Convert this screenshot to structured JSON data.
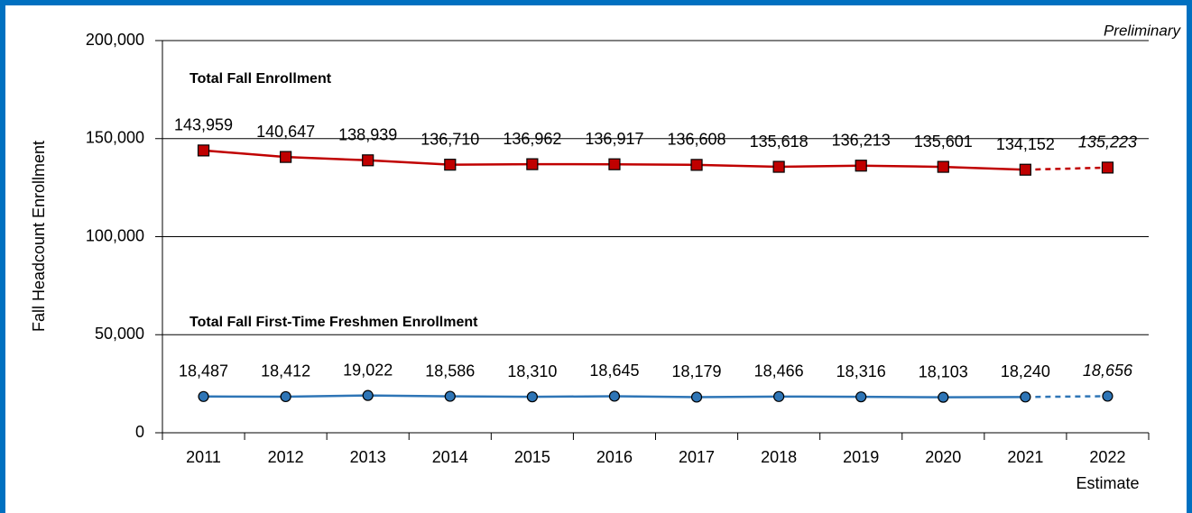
{
  "chart_data": {
    "type": "line",
    "y_label": "Fall Headcount Enrollment",
    "annotation": "Preliminary",
    "x_annotation": "Estimate",
    "categories": [
      "2011",
      "2012",
      "2013",
      "2014",
      "2015",
      "2016",
      "2017",
      "2018",
      "2019",
      "2020",
      "2021",
      "2022"
    ],
    "series": [
      {
        "name": "Total Fall Enrollment",
        "color": "#c00000",
        "values": [
          143959,
          140647,
          138939,
          136710,
          136962,
          136917,
          136608,
          135618,
          136213,
          135601,
          134152,
          135223
        ],
        "value_labels": [
          "143,959",
          "140,647",
          "138,939",
          "136,710",
          "136,962",
          "136,917",
          "136,608",
          "135,618",
          "136,213",
          "135,601",
          "134,152",
          "135,223"
        ]
      },
      {
        "name": "Total Fall First-Time Freshmen Enrollment",
        "color": "#2e75b6",
        "values": [
          18487,
          18412,
          19022,
          18586,
          18310,
          18645,
          18179,
          18466,
          18316,
          18103,
          18240,
          18656
        ],
        "value_labels": [
          "18,487",
          "18,412",
          "19,022",
          "18,586",
          "18,310",
          "18,645",
          "18,179",
          "18,466",
          "18,316",
          "18,103",
          "18,240",
          "18,656"
        ]
      }
    ],
    "ylim": [
      0,
      200000
    ],
    "yticks": [
      0,
      {
        "value": 50000,
        "label": "50,000"
      },
      {
        "value": 100000,
        "label": "100,000"
      },
      {
        "value": 150000,
        "label": "150,000"
      },
      {
        "value": 200000,
        "label": "200,000"
      }
    ],
    "grid": true
  }
}
